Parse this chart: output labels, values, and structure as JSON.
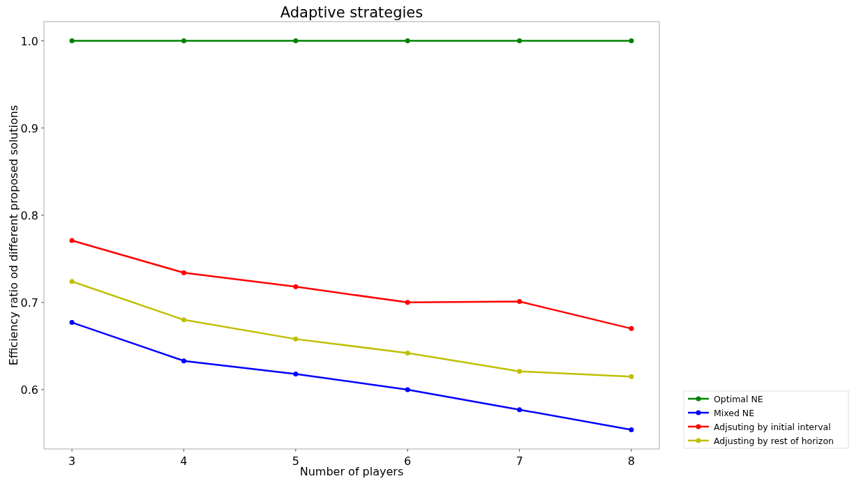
{
  "chart_data": {
    "type": "line",
    "title": "Adaptive strategies",
    "xlabel": "Number of players",
    "ylabel": "Efficiency ratio od different proposed solutions",
    "x": [
      3,
      4,
      5,
      6,
      7,
      8
    ],
    "series": [
      {
        "name": "Optimal NE",
        "color": "#008000",
        "values": [
          1.0,
          1.0,
          1.0,
          1.0,
          1.0,
          1.0
        ]
      },
      {
        "name": "Mixed NE",
        "color": "#0000ff",
        "values": [
          0.677,
          0.633,
          0.618,
          0.6,
          0.577,
          0.554
        ]
      },
      {
        "name": "Adjsuting by initial interval",
        "color": "#ff0000",
        "values": [
          0.771,
          0.734,
          0.718,
          0.7,
          0.701,
          0.67
        ]
      },
      {
        "name": "Adjusting by rest of horizon",
        "color": "#bfbf00",
        "values": [
          0.724,
          0.68,
          0.658,
          0.642,
          0.621,
          0.615
        ]
      }
    ],
    "xlim": [
      2.75,
      8.25
    ],
    "xticks": [
      3,
      4,
      5,
      6,
      7,
      8
    ],
    "ylim": [
      0.532,
      1.022
    ],
    "yticks": [
      {
        "value": 0.6,
        "label": "0.6"
      },
      {
        "value": 0.7,
        "label": "0.7"
      },
      {
        "value": 0.8,
        "label": "0.8"
      },
      {
        "value": 0.9,
        "label": "0.9"
      },
      {
        "value": 1.0,
        "label": "1.0"
      }
    ],
    "grid": false,
    "legend": "bottom right",
    "marker": "circle",
    "line_style": "solid"
  }
}
